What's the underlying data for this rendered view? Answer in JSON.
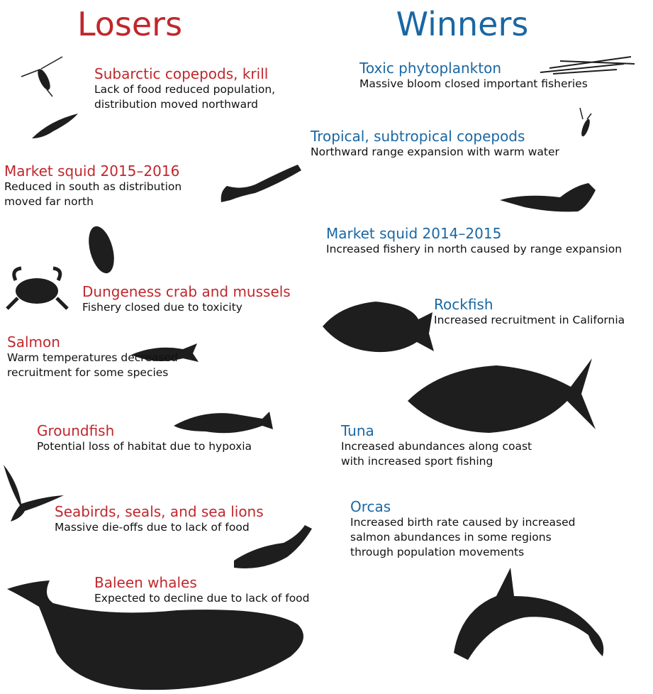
{
  "losers": {
    "heading": "Losers",
    "items": [
      {
        "title": "Subarctic copepods, krill",
        "description": [
          "Lack of food reduced population,",
          "distribution moved northward"
        ]
      },
      {
        "title": "Market squid 2015–2016",
        "description": [
          "Reduced in south as distribution",
          "moved far north"
        ]
      },
      {
        "title": "Dungeness crab and mussels",
        "description": [
          "Fishery closed due to toxicity"
        ]
      },
      {
        "title": "Salmon",
        "description": [
          "Warm temperatures decreased",
          "recruitment for some species"
        ]
      },
      {
        "title": "Groundfish",
        "description": [
          "Potential loss of habitat due to hypoxia"
        ]
      },
      {
        "title": "Seabirds, seals, and sea lions",
        "description": [
          "Massive die-offs due to lack of food"
        ]
      },
      {
        "title": "Baleen whales",
        "description": [
          "Expected to decline due to lack of food"
        ]
      }
    ]
  },
  "winners": {
    "heading": "Winners",
    "items": [
      {
        "title": "Toxic phytoplankton",
        "description": [
          "Massive bloom closed important fisheries"
        ]
      },
      {
        "title": "Tropical, subtropical copepods",
        "description": [
          "Northward range expansion with warm water"
        ]
      },
      {
        "title": "Market squid 2014–2015",
        "description": [
          "Increased fishery in north caused by range expansion"
        ]
      },
      {
        "title": "Rockfish",
        "description": [
          "Increased recruitment in California"
        ]
      },
      {
        "title": "Tuna",
        "description": [
          "Increased abundances along coast",
          "with increased sport fishing"
        ]
      },
      {
        "title": "Orcas",
        "description": [
          "Increased birth rate caused by increased",
          "salmon abundances in some regions",
          "through population movements"
        ]
      }
    ]
  }
}
